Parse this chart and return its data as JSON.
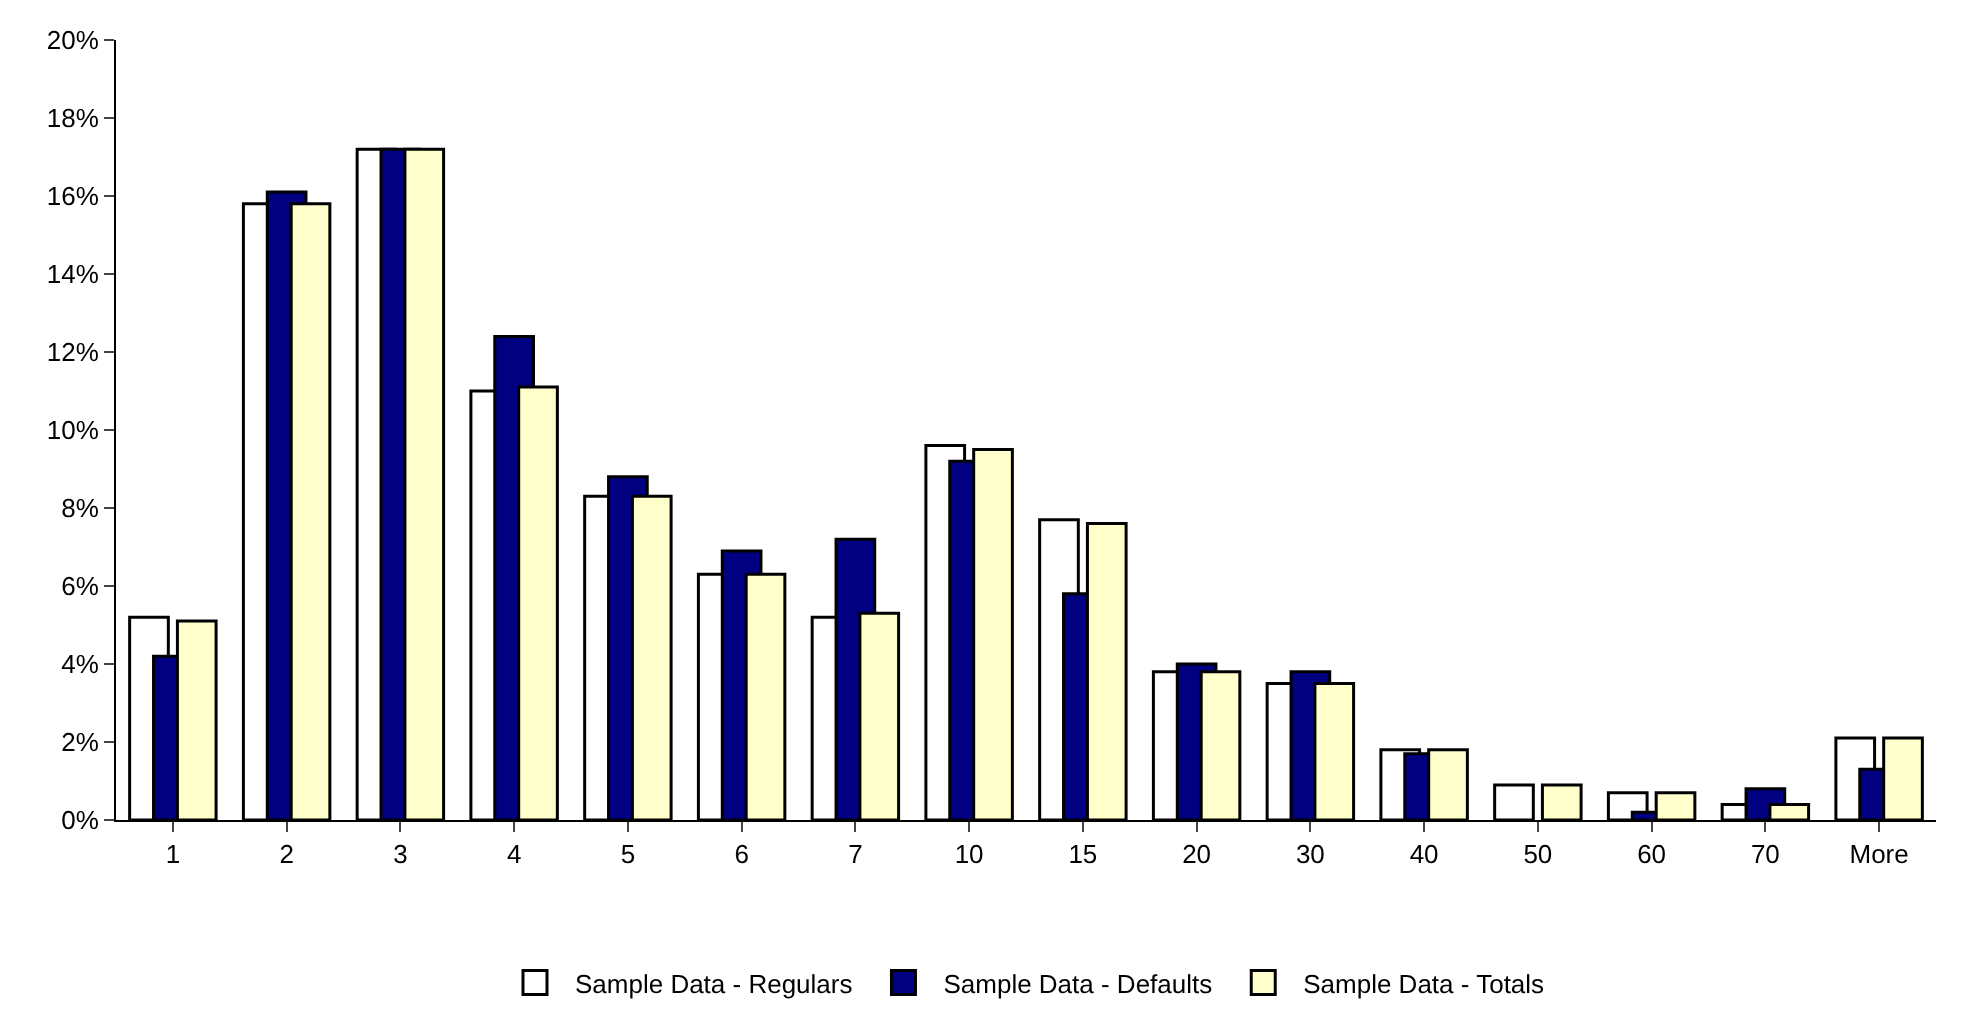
{
  "chart_data": {
    "type": "bar",
    "categories": [
      "1",
      "2",
      "3",
      "4",
      "5",
      "6",
      "7",
      "10",
      "15",
      "20",
      "30",
      "40",
      "50",
      "60",
      "70",
      "More"
    ],
    "series": [
      {
        "name": "Sample Data - Regulars",
        "color": "#ffffff",
        "values": [
          5.2,
          15.8,
          17.2,
          11.0,
          8.3,
          6.3,
          5.2,
          9.6,
          7.7,
          3.8,
          3.5,
          1.8,
          0.9,
          0.7,
          0.4,
          2.1
        ]
      },
      {
        "name": "Sample Data - Defaults",
        "color": "#000080",
        "values": [
          4.2,
          16.1,
          17.2,
          12.4,
          8.8,
          6.9,
          7.2,
          9.2,
          5.8,
          4.0,
          3.8,
          1.7,
          null,
          0.2,
          0.8,
          1.3
        ]
      },
      {
        "name": "Sample Data - Totals",
        "color": "#ffffcc",
        "values": [
          5.1,
          15.8,
          17.2,
          11.1,
          8.3,
          6.3,
          5.3,
          9.5,
          7.6,
          3.8,
          3.5,
          1.8,
          0.9,
          0.7,
          0.4,
          2.1
        ]
      }
    ],
    "ylim": [
      0,
      20
    ],
    "yticks": [
      {
        "value": 0,
        "label": "0%"
      },
      {
        "value": 2,
        "label": "2%"
      },
      {
        "value": 4,
        "label": "4%"
      },
      {
        "value": 6,
        "label": "6%"
      },
      {
        "value": 8,
        "label": "8%"
      },
      {
        "value": 10,
        "label": "10%"
      },
      {
        "value": 12,
        "label": "12%"
      },
      {
        "value": 14,
        "label": "14%"
      },
      {
        "value": 16,
        "label": "16%"
      },
      {
        "value": 18,
        "label": "18%"
      },
      {
        "value": 20,
        "label": "20%"
      }
    ],
    "legend": "bottom"
  }
}
